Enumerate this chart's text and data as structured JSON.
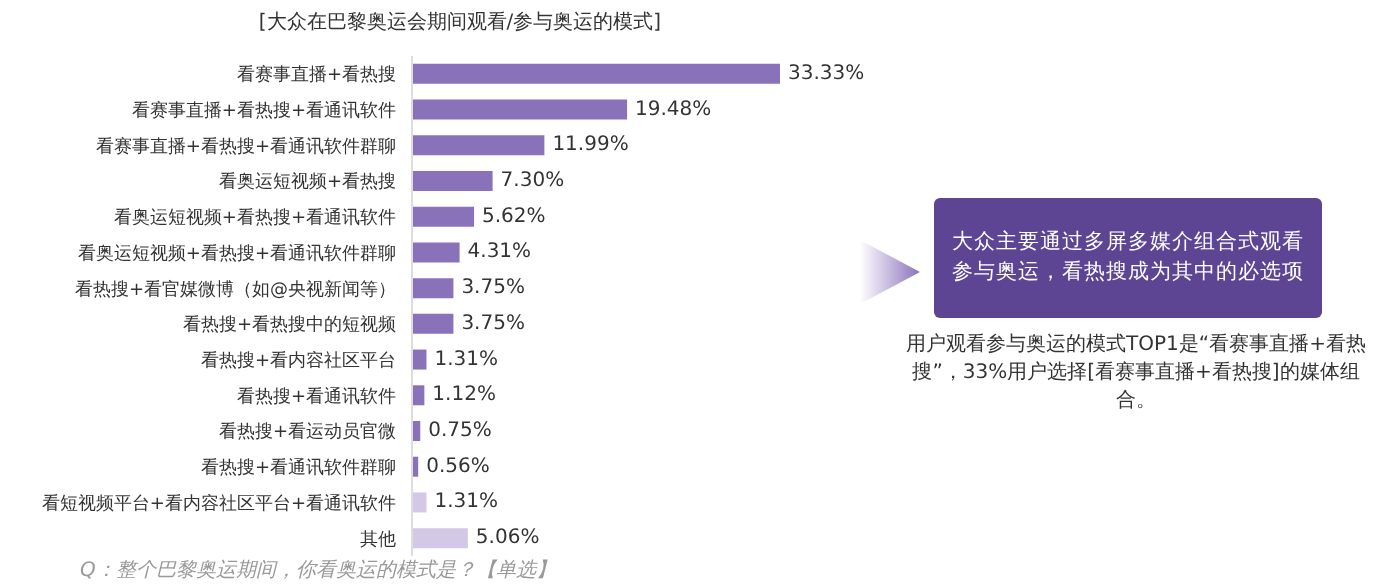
{
  "chart_data": {
    "type": "bar",
    "orientation": "horizontal",
    "title": "[大众在巴黎奥运会期间观看/参与奥运的模式]",
    "categories": [
      "看赛事直播+看热搜",
      "看赛事直播+看热搜+看通讯软件",
      "看赛事直播+看热搜+看通讯软件群聊",
      "看奥运短视频+看热搜",
      "看奥运短视频+看热搜+看通讯软件",
      "看奥运短视频+看热搜+看通讯软件群聊",
      "看热搜+看官媒微博（如@央视新闻等）",
      "看热搜+看热搜中的短视频",
      "看热搜+看内容社区平台",
      "看热搜+看通讯软件",
      "看热搜+看运动员官微",
      "看热搜+看通讯软件群聊",
      "看短视频平台+看内容社区平台+看通讯软件",
      "其他"
    ],
    "values": [
      33.33,
      19.48,
      11.99,
      7.3,
      5.62,
      4.31,
      3.75,
      3.75,
      1.31,
      1.12,
      0.75,
      0.56,
      1.31,
      5.06
    ],
    "value_labels": [
      "33.33%",
      "19.48%",
      "11.99%",
      "7.30%",
      "5.62%",
      "4.31%",
      "3.75%",
      "3.75%",
      "1.31%",
      "1.12%",
      "0.75%",
      "0.56%",
      "1.31%",
      "5.06%"
    ],
    "colors": [
      "#8a72bb",
      "#8a72bb",
      "#8a72bb",
      "#8a72bb",
      "#8a72bb",
      "#8a72bb",
      "#8a72bb",
      "#8a72bb",
      "#8a72bb",
      "#8a72bb",
      "#8a72bb",
      "#8a72bb",
      "#d3c8e6",
      "#d3c8e6"
    ],
    "annotations": [
      "大众主要通过多屏多媒介组合式观看参与奥运，看热搜成为其中的必选项",
      "用户观看参与奥运的模式TOP1是“看赛事直播+看热搜”，33%用户选择[看赛事直播+看热搜]的媒体组合。",
      "Q：整个巴黎奥运期间，你看奥运的模式是？【单选】"
    ],
    "data_labels": false
  }
}
